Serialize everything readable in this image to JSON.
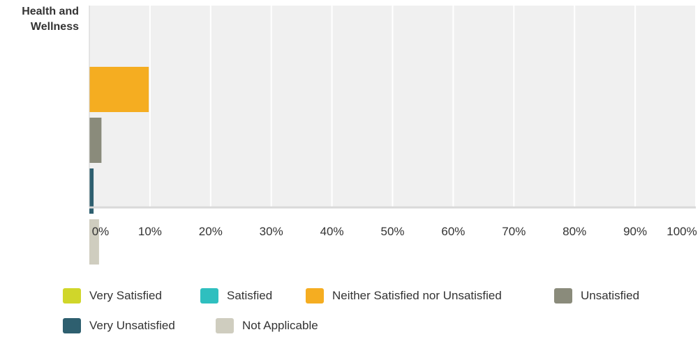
{
  "chart_data": {
    "type": "bar",
    "orientation": "horizontal",
    "categories": [
      "Health and Wellness"
    ],
    "series": [
      {
        "name": "Very Satisfied",
        "color": "#d0d62a",
        "values": [
          0
        ]
      },
      {
        "name": "Satisfied",
        "color": "#2fbfbf",
        "values": [
          0
        ]
      },
      {
        "name": "Neither Satisfied nor Unsatisfied",
        "color": "#f5ad21",
        "values": [
          9.8
        ]
      },
      {
        "name": "Unsatisfied",
        "color": "#8a8b7b",
        "values": [
          2
        ]
      },
      {
        "name": "Very Unsatisfied",
        "color": "#2e5f6f",
        "values": [
          0.7
        ]
      },
      {
        "name": "Not Applicable",
        "color": "#cfcdbf",
        "values": [
          1.6
        ]
      }
    ],
    "x_ticks": [
      "0%",
      "10%",
      "20%",
      "30%",
      "40%",
      "50%",
      "60%",
      "70%",
      "80%",
      "90%",
      "100%"
    ],
    "xlim": [
      0,
      100
    ],
    "grid": true,
    "legend_position": "bottom",
    "plot_background": "#f0f0f0",
    "title": "",
    "xlabel": "",
    "ylabel": ""
  }
}
